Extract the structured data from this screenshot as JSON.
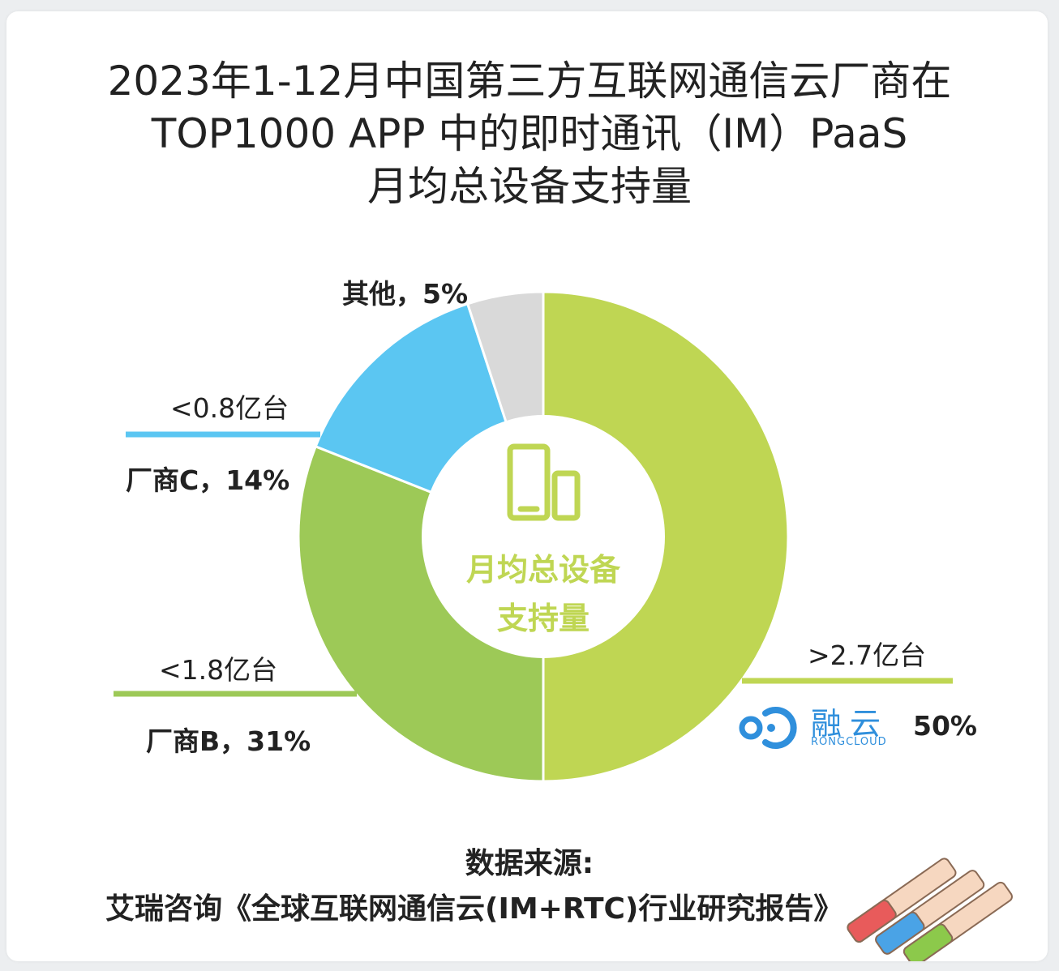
{
  "title": {
    "line1": "2023年1-12月中国第三方互联网通信云厂商在",
    "line2": "TOP1000 APP 中的即时通讯（IM）PaaS",
    "line3": "月均总设备支持量"
  },
  "center_label": {
    "line1": "月均总设备",
    "line2": "支持量"
  },
  "labels": {
    "others": "其他，5%",
    "c_amount": "<0.8亿台",
    "c_name": "厂商C，14%",
    "b_amount": "<1.8亿台",
    "b_name": "厂商B，31%",
    "rong_amount": ">2.7亿台",
    "rong_pct": "50%"
  },
  "brand": {
    "name": "融云",
    "sub": "RONGCLOUD"
  },
  "source": {
    "heading": "数据来源:",
    "text": "艾瑞咨询《全球互联网通信云(IM+RTC)行业研究报告》"
  },
  "colors": {
    "rongcloud": "#bfd653",
    "vendor_b": "#9dc957",
    "vendor_c": "#5bc6f2",
    "others": "#d9d9d9",
    "brand_blue": "#2f8fdc"
  },
  "chart_data": {
    "type": "pie",
    "title": "2023年1-12月中国第三方互联网通信云厂商在TOP1000 APP 中的即时通讯（IM）PaaS 月均总设备支持量",
    "slices": [
      {
        "name": "融云",
        "value": 50,
        "amount": ">2.7亿台",
        "color": "#bfd653"
      },
      {
        "name": "厂商B",
        "value": 31,
        "amount": "<1.8亿台",
        "color": "#9dc957"
      },
      {
        "name": "厂商C",
        "value": 14,
        "amount": "<0.8亿台",
        "color": "#5bc6f2"
      },
      {
        "name": "其他",
        "value": 5,
        "amount": "",
        "color": "#d9d9d9"
      }
    ],
    "donut": true,
    "start_angle": "12 o'clock",
    "direction": "clockwise"
  }
}
